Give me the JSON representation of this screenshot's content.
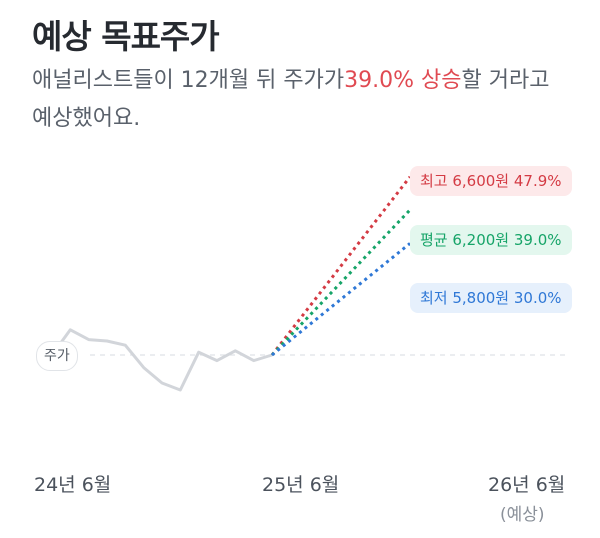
{
  "header": {
    "title": "예상 목표주가",
    "desc_pre": "애널리스트들이 12개월 뒤 주가가",
    "desc_hl": "39.0% 상승",
    "desc_post": "할 거라고 예상했어요."
  },
  "price_label": "주가",
  "chart_data": {
    "type": "line",
    "x_ticks": [
      "24년 6월",
      "25년 6월",
      "26년 6월"
    ],
    "x_tick_sub": [
      "",
      "",
      "(예상)"
    ],
    "history": [
      0.0,
      0.9,
      0.55,
      0.5,
      0.35,
      -0.45,
      -1.0,
      -1.25,
      0.1,
      -0.2,
      0.15,
      -0.2,
      0.0
    ],
    "targets": [
      {
        "label": "최고 6,600원 47.9%",
        "color": "#d43b44",
        "pct": 47.9
      },
      {
        "label": "평균 6,200원 39.0%",
        "color": "#16a468",
        "pct": 39.0
      },
      {
        "label": "최저 5,800원 30.0%",
        "color": "#2f78d6",
        "pct": 30.0
      }
    ]
  }
}
